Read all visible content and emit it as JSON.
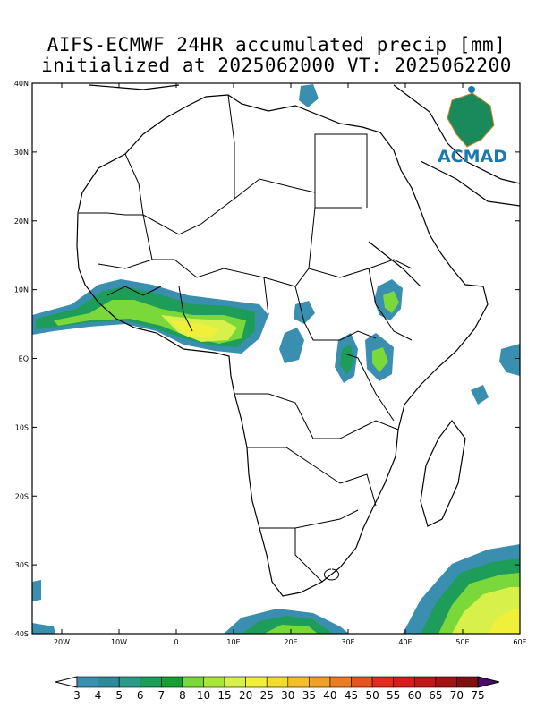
{
  "title_line1": "AIFS-ECMWF 24HR accumulated precip [mm]",
  "title_line2": "initialized at 2025062000 VT: 2025062200",
  "logo": {
    "text": "ACMAD"
  },
  "map": {
    "lon_range": [
      -25,
      60
    ],
    "lat_range": [
      -40,
      40
    ],
    "lat_labels": [
      "40N",
      "30N",
      "20N",
      "10N",
      "EQ",
      "10S",
      "20S",
      "30S",
      "40S"
    ],
    "lon_labels": [
      "20W",
      "10W",
      "0",
      "10E",
      "20E",
      "30E",
      "40E",
      "50E",
      "60E"
    ]
  },
  "colorbar": {
    "levels": [
      "3",
      "4",
      "5",
      "6",
      "7",
      "8",
      "10",
      "15",
      "20",
      "25",
      "30",
      "35",
      "40",
      "45",
      "50",
      "55",
      "60",
      "65",
      "70",
      "75"
    ],
    "colors": [
      "#3a8fb0",
      "#2e8a9a",
      "#2a9a8a",
      "#1e9c5a",
      "#16a034",
      "#7ad83a",
      "#a8e63c",
      "#d8f04a",
      "#f0f03a",
      "#f4dc2c",
      "#f4be28",
      "#f0a028",
      "#ec7c24",
      "#e85420",
      "#e42c1c",
      "#d81c1c",
      "#c01818",
      "#a01414",
      "#801010",
      "#5a0c2a",
      "#4a0a6a"
    ]
  }
}
